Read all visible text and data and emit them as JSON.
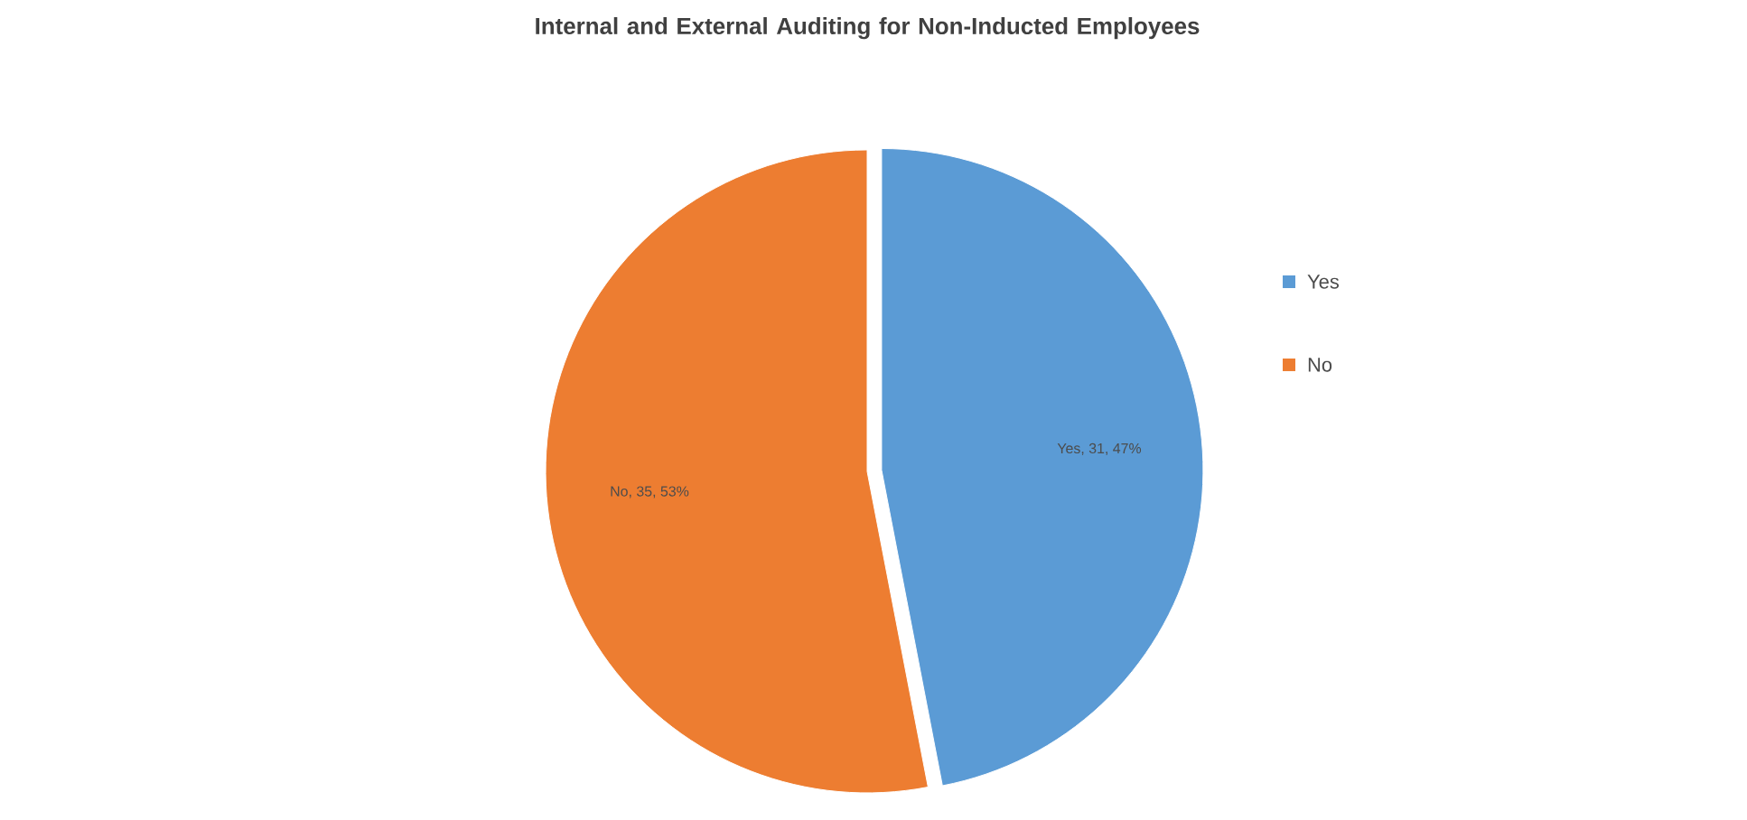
{
  "chart_data": {
    "type": "pie",
    "title": "Internal and External Auditing for Non-Inducted Employees",
    "categories": [
      "Yes",
      "No"
    ],
    "values": [
      31,
      35
    ],
    "colors": [
      "#5b9bd5",
      "#ed7d31"
    ],
    "value_labels": [
      "Yes, 31, 47%",
      "No, 35, 53%"
    ],
    "legend": "right"
  }
}
